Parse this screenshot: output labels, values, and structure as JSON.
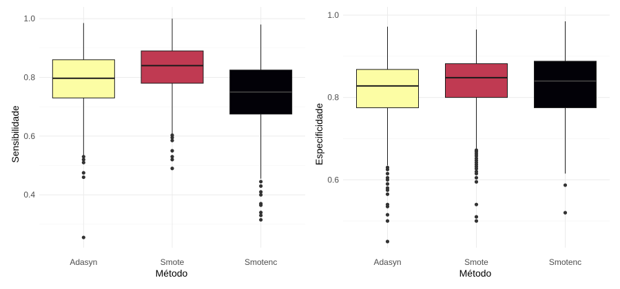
{
  "chart_data": [
    {
      "type": "boxplot",
      "xlabel": "Método",
      "ylabel": "Sensibilidade",
      "categories": [
        "Adasyn",
        "Smote",
        "Smotenc"
      ],
      "ylim": [
        0.22,
        1.04
      ],
      "yticks": [
        0.4,
        0.6,
        0.8,
        1.0
      ],
      "ytick_labels": [
        "0.4",
        "0.6",
        "0.8",
        "1.0"
      ],
      "grid": true,
      "legend": "none",
      "series": [
        {
          "whisker_low": 0.53,
          "q1": 0.73,
          "median": 0.797,
          "q3": 0.86,
          "whisker_high": 0.985,
          "outliers": [
            0.53,
            0.52,
            0.51,
            0.475,
            0.46,
            0.255
          ]
        },
        {
          "whisker_low": 0.605,
          "q1": 0.78,
          "median": 0.84,
          "q3": 0.89,
          "whisker_high": 1.0,
          "outliers": [
            0.603,
            0.595,
            0.585,
            0.55,
            0.53,
            0.52,
            0.49
          ]
        },
        {
          "whisker_low": 0.455,
          "q1": 0.675,
          "median": 0.75,
          "q3": 0.825,
          "whisker_high": 0.98,
          "outliers": [
            0.445,
            0.43,
            0.41,
            0.4,
            0.37,
            0.365,
            0.34,
            0.33,
            0.315
          ]
        }
      ]
    },
    {
      "type": "boxplot",
      "xlabel": "Método",
      "ylabel": "Especificidade",
      "categories": [
        "Adasyn",
        "Smote",
        "Smotenc"
      ],
      "ylim": [
        0.435,
        1.02
      ],
      "yticks": [
        0.6,
        0.8,
        1.0
      ],
      "ytick_labels": [
        "0.6",
        "0.8",
        "1.0"
      ],
      "grid": true,
      "legend": "none",
      "series": [
        {
          "whisker_low": 0.635,
          "q1": 0.775,
          "median": 0.828,
          "q3": 0.868,
          "whisker_high": 0.972,
          "outliers": [
            0.63,
            0.625,
            0.615,
            0.605,
            0.6,
            0.59,
            0.58,
            0.575,
            0.565,
            0.54,
            0.535,
            0.515,
            0.5,
            0.45
          ]
        },
        {
          "whisker_low": 0.675,
          "q1": 0.8,
          "median": 0.848,
          "q3": 0.882,
          "whisker_high": 0.965,
          "outliers": [
            0.672,
            0.668,
            0.663,
            0.658,
            0.652,
            0.647,
            0.642,
            0.637,
            0.632,
            0.627,
            0.62,
            0.615,
            0.605,
            0.595,
            0.54,
            0.51,
            0.5
          ]
        },
        {
          "whisker_low": 0.615,
          "q1": 0.775,
          "median": 0.84,
          "q3": 0.888,
          "whisker_high": 0.985,
          "outliers": [
            0.587,
            0.52
          ]
        }
      ]
    }
  ],
  "colors": {
    "fills": [
      "#FCFDA4",
      "#C03A52",
      "#020107"
    ],
    "box_stroke": "#1a1a1a",
    "median_on_light": "#1a1a1a",
    "median_on_dark": "#3a3a3a",
    "outlier": "#333333"
  }
}
